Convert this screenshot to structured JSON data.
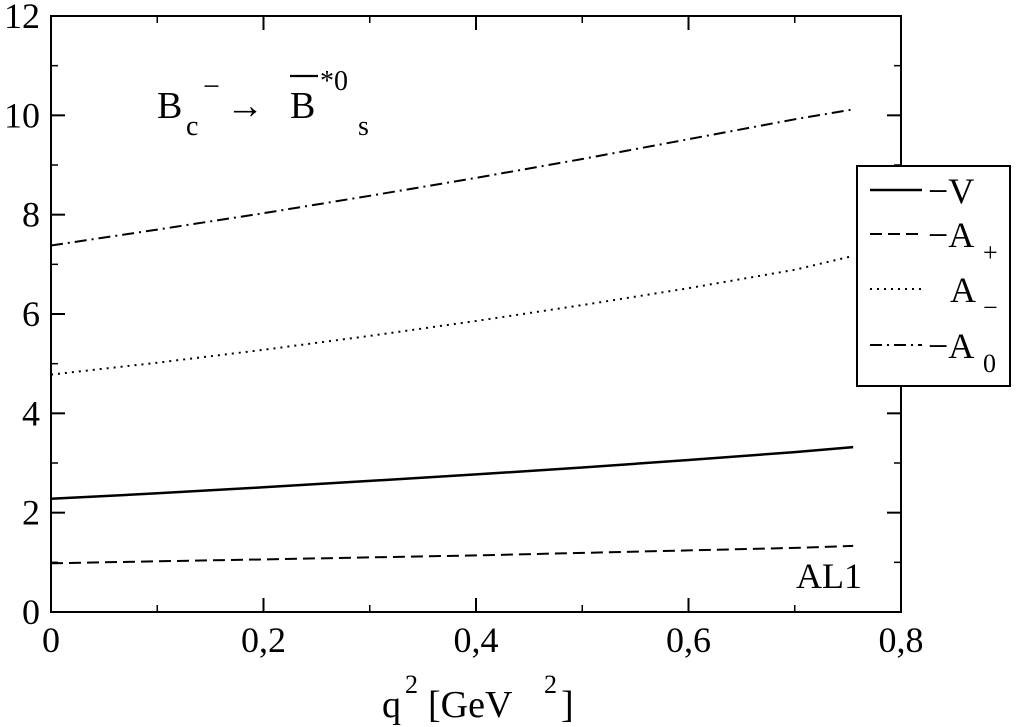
{
  "chart_data": {
    "type": "line",
    "title": {
      "particle_main": "B",
      "particle_sub": "c",
      "particle_sup": "−",
      "arrow": "→",
      "target_main": "B",
      "target_sup": "*0",
      "target_sub": "s"
    },
    "xlabel": {
      "main": "q",
      "sup": "2",
      "bracket_open": "[GeV",
      "unit_sup": "2",
      "bracket_close": "]"
    },
    "ylabel": "",
    "xlim": [
      0,
      0.8
    ],
    "ylim": [
      0,
      12
    ],
    "x_ticks": [
      {
        "value": 0,
        "label": "0"
      },
      {
        "value": 0.2,
        "label": "0,2"
      },
      {
        "value": 0.4,
        "label": "0,4"
      },
      {
        "value": 0.6,
        "label": "0,6"
      },
      {
        "value": 0.8,
        "label": "0,8"
      }
    ],
    "y_ticks": [
      {
        "value": 0,
        "label": "0"
      },
      {
        "value": 2,
        "label": "2"
      },
      {
        "value": 4,
        "label": "4"
      },
      {
        "value": 6,
        "label": "6"
      },
      {
        "value": 8,
        "label": "8"
      },
      {
        "value": 10,
        "label": "10"
      },
      {
        "value": 12,
        "label": "12"
      }
    ],
    "grid": false,
    "legend_position": "right",
    "annotation": "AL1",
    "series": [
      {
        "name": "−V",
        "legend_main": "−V",
        "legend_sub": "",
        "style": "solid",
        "x": [
          0,
          0.1,
          0.2,
          0.3,
          0.4,
          0.5,
          0.6,
          0.7,
          0.755
        ],
        "y": [
          2.28,
          2.39,
          2.51,
          2.64,
          2.77,
          2.91,
          3.06,
          3.22,
          3.32
        ]
      },
      {
        "name": "−A+",
        "legend_main": "−A",
        "legend_sub": "+",
        "style": "dashed",
        "x": [
          0,
          0.1,
          0.2,
          0.3,
          0.4,
          0.5,
          0.6,
          0.7,
          0.755
        ],
        "y": [
          0.98,
          1.02,
          1.06,
          1.1,
          1.14,
          1.19,
          1.24,
          1.29,
          1.33
        ]
      },
      {
        "name": "A−",
        "legend_main": "A",
        "legend_sub": "−",
        "style": "dotted",
        "x": [
          0,
          0.1,
          0.2,
          0.3,
          0.4,
          0.5,
          0.6,
          0.7,
          0.755
        ],
        "y": [
          4.78,
          5.02,
          5.28,
          5.56,
          5.86,
          6.18,
          6.52,
          6.89,
          7.17
        ]
      },
      {
        "name": "−A0",
        "legend_main": "−A",
        "legend_sub": "0",
        "style": "dashdot",
        "x": [
          0,
          0.1,
          0.2,
          0.3,
          0.4,
          0.5,
          0.6,
          0.7,
          0.755
        ],
        "y": [
          7.38,
          7.7,
          8.03,
          8.38,
          8.74,
          9.12,
          9.52,
          9.92,
          10.12
        ]
      }
    ]
  }
}
